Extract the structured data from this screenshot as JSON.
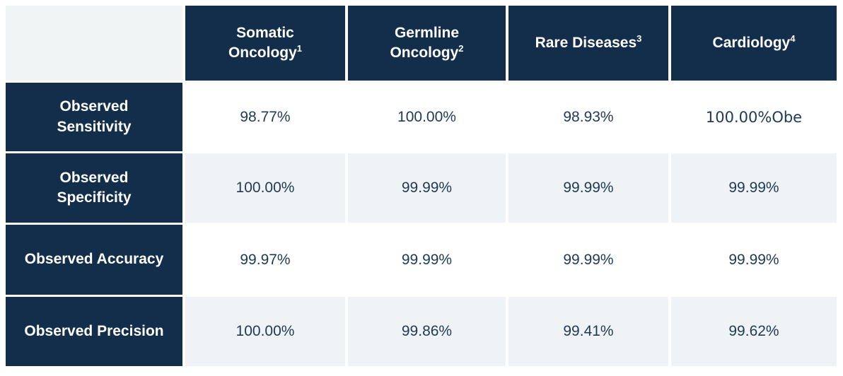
{
  "colors": {
    "navy": "#132E4A",
    "light_gray": "#F0F3F5",
    "corner_gray": "#F1F4F5",
    "value_text": "#1E3A56",
    "header_text": "#FFFFFF"
  },
  "table": {
    "header": {
      "columns": [
        {
          "line1": "Somatic",
          "line2": "Oncology",
          "sup": "1"
        },
        {
          "line1": "Germline",
          "line2": "Oncology",
          "sup": "2"
        },
        {
          "line1": "Rare Diseases",
          "sup": "3"
        },
        {
          "line1": "Cardiology",
          "sup": "4"
        }
      ]
    },
    "rows": [
      {
        "label_line1": "Observed",
        "label_line2": "Sensitivity",
        "values": [
          "98.77%",
          "100.00%",
          "98.93%",
          "100.00%Obe"
        ]
      },
      {
        "label_line1": "Observed",
        "label_line2": "Specificity",
        "values": [
          "100.00%",
          "99.99%",
          "99.99%",
          "99.99%"
        ]
      },
      {
        "label_line1": "Observed Accuracy",
        "values": [
          "99.97%",
          "99.99%",
          "99.99%",
          "99.99%"
        ]
      },
      {
        "label_line1": "Observed Precision",
        "values": [
          "100.00%",
          "99.86%",
          "99.41%",
          "99.62%"
        ]
      }
    ]
  }
}
